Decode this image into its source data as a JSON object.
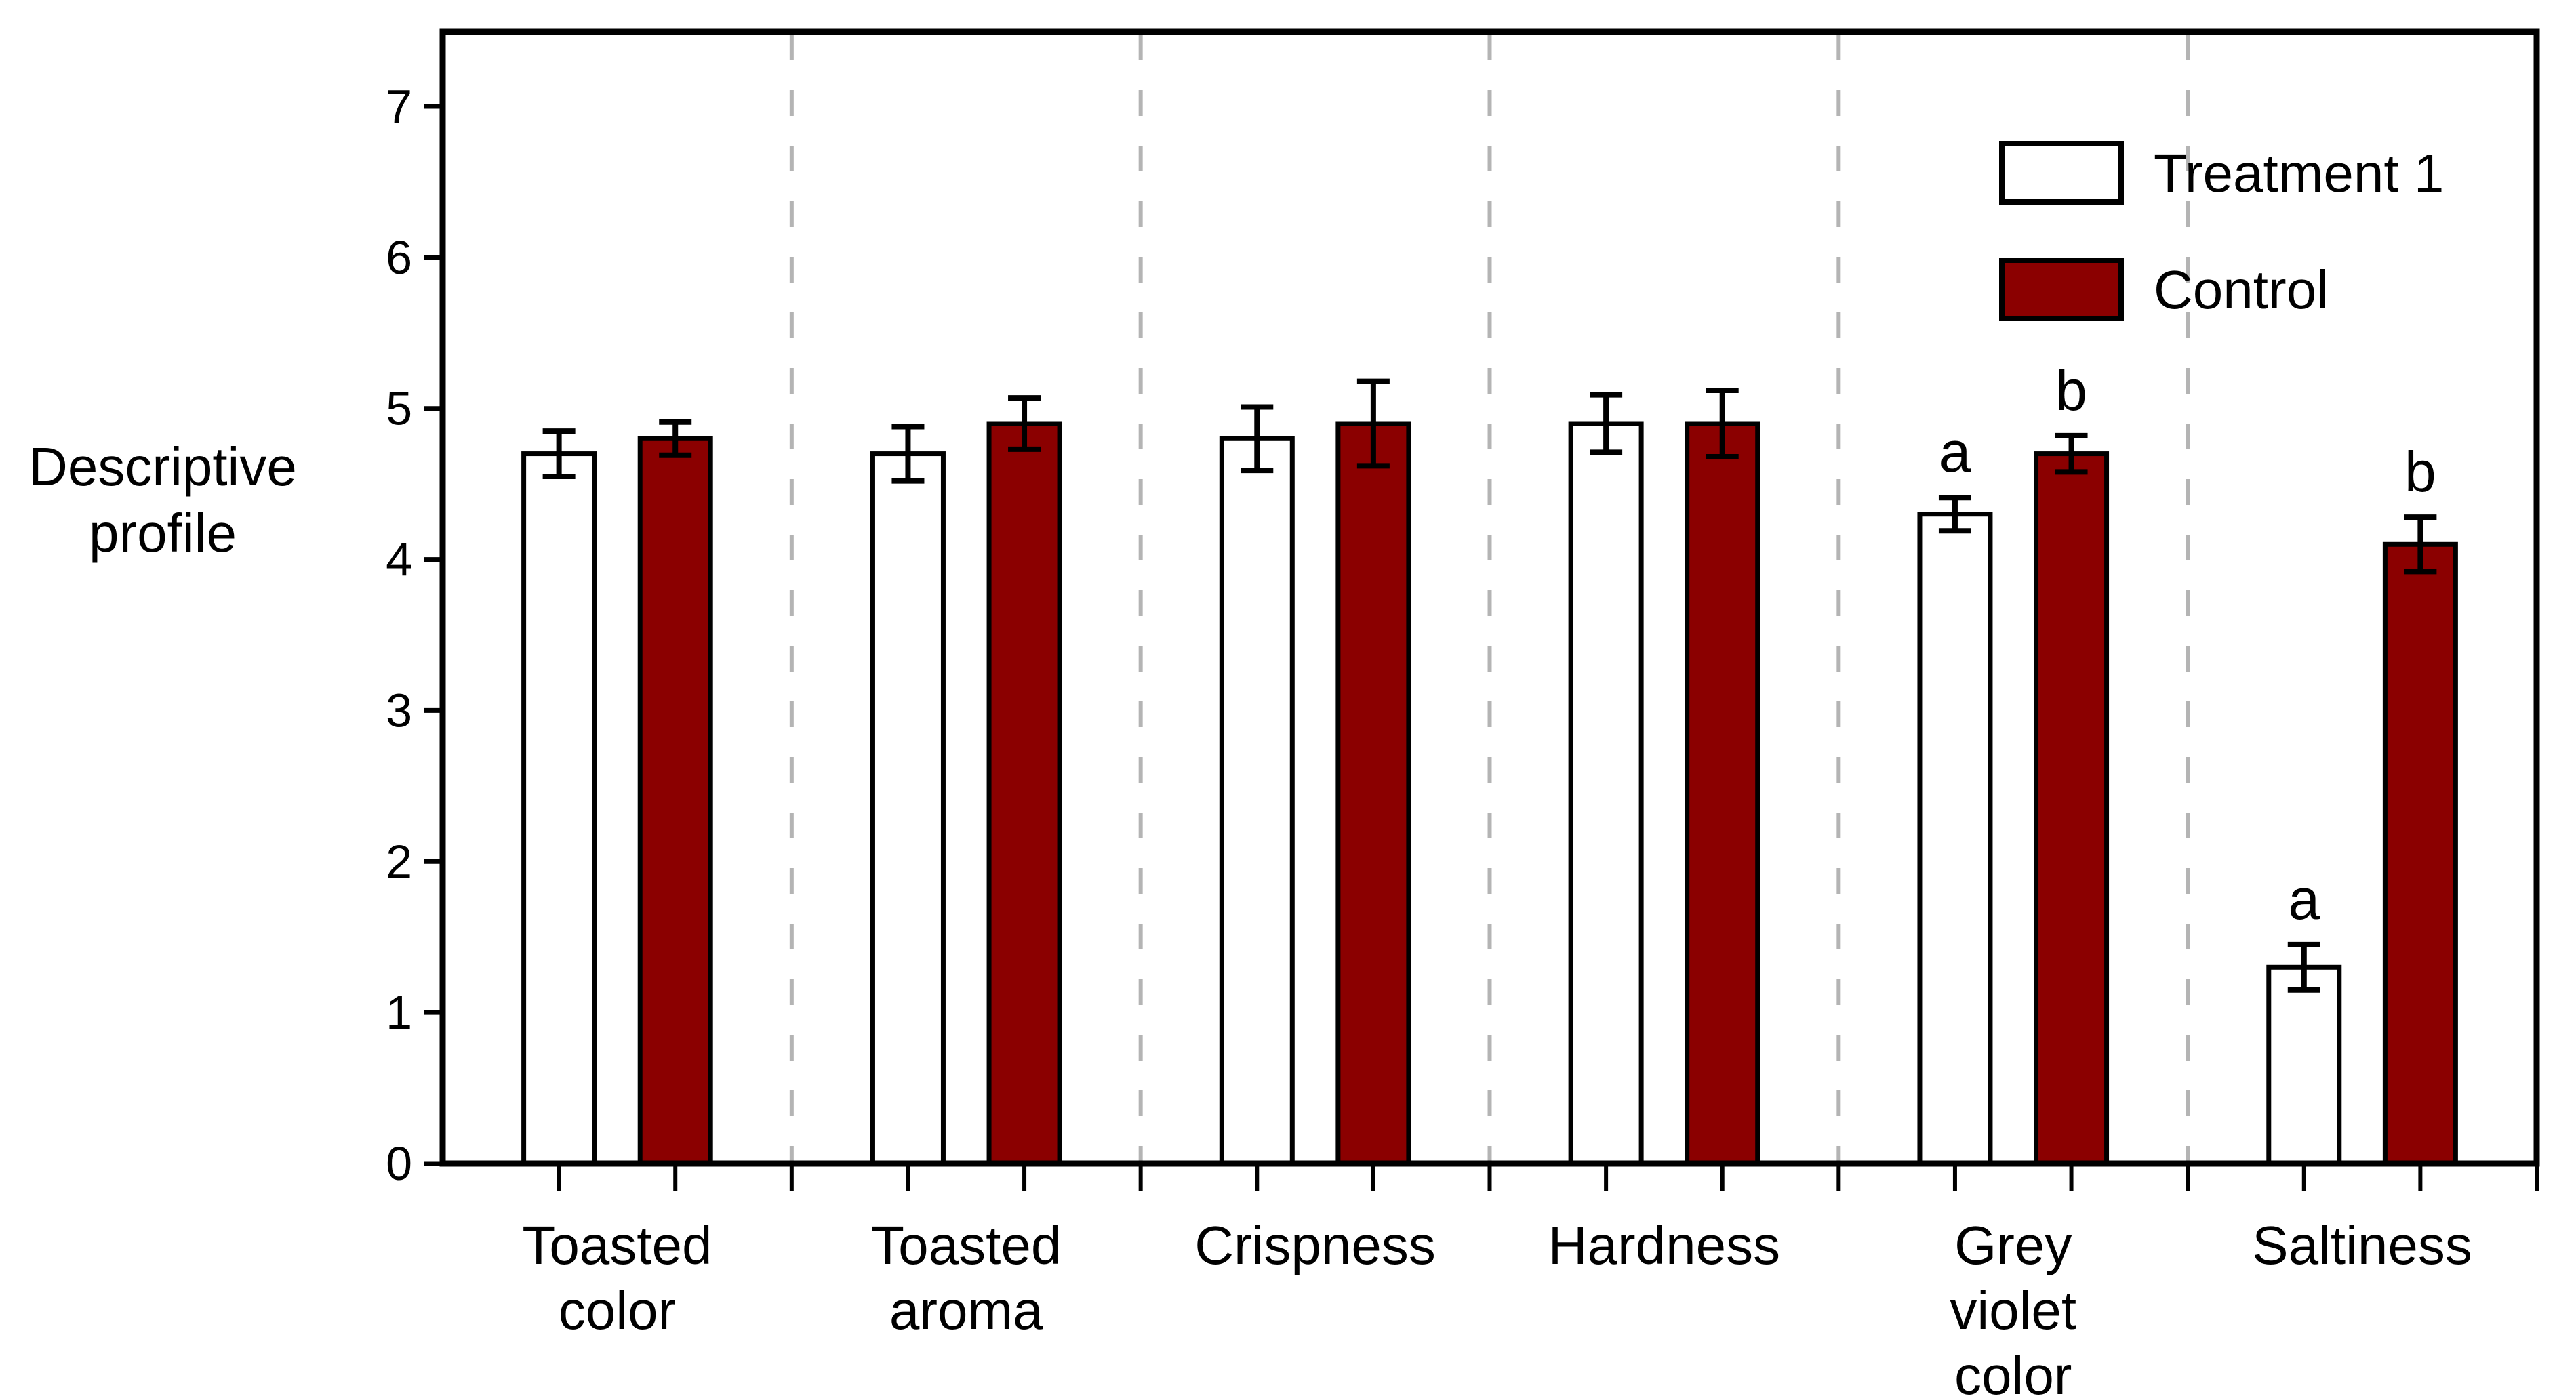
{
  "chart_data": {
    "type": "bar",
    "title": "",
    "xlabel": "",
    "ylabel": "Descriptive profile",
    "ylabel_lines": [
      "Descriptive",
      "profile"
    ],
    "ylim": [
      0,
      7.5
    ],
    "yticks": [
      0,
      1,
      2,
      3,
      4,
      5,
      6,
      7
    ],
    "grid": "vertical dashed separators between categories",
    "legend_position": "top-right inside plot area",
    "categories": [
      "Toasted color",
      "Toasted aroma",
      "Crispness",
      "Hardness",
      "Grey violet color",
      "Saltiness"
    ],
    "category_label_lines": [
      [
        "Toasted",
        "color"
      ],
      [
        "Toasted",
        "aroma"
      ],
      [
        "Crispness"
      ],
      [
        "Hardness"
      ],
      [
        "Grey",
        "violet",
        "color"
      ],
      [
        "Saltiness"
      ]
    ],
    "series": [
      {
        "name": "Treatment 1",
        "fill": "#ffffff",
        "values": [
          4.7,
          4.7,
          4.8,
          4.9,
          4.3,
          1.3
        ],
        "errors": [
          0.15,
          0.18,
          0.21,
          0.19,
          0.11,
          0.15
        ],
        "sig_letters": [
          "",
          "",
          "",
          "",
          "a",
          "a"
        ]
      },
      {
        "name": "Control",
        "fill": "#8b0000",
        "values": [
          4.8,
          4.9,
          4.9,
          4.9,
          4.7,
          4.1
        ],
        "errors": [
          0.11,
          0.17,
          0.28,
          0.22,
          0.12,
          0.18
        ],
        "sig_letters": [
          "",
          "",
          "",
          "",
          "b",
          "b"
        ]
      }
    ]
  },
  "colors": {
    "bar_outline": "#000000",
    "axis": "#000000",
    "control_fill": "#8b0000",
    "treatment_fill": "#ffffff",
    "separator_dash": "#b4b4b4",
    "text": "#000000",
    "background": "#ffffff"
  },
  "legend": {
    "items": [
      {
        "label": "Treatment 1",
        "swatch": "#ffffff"
      },
      {
        "label": "Control",
        "swatch": "#8b0000"
      }
    ]
  }
}
